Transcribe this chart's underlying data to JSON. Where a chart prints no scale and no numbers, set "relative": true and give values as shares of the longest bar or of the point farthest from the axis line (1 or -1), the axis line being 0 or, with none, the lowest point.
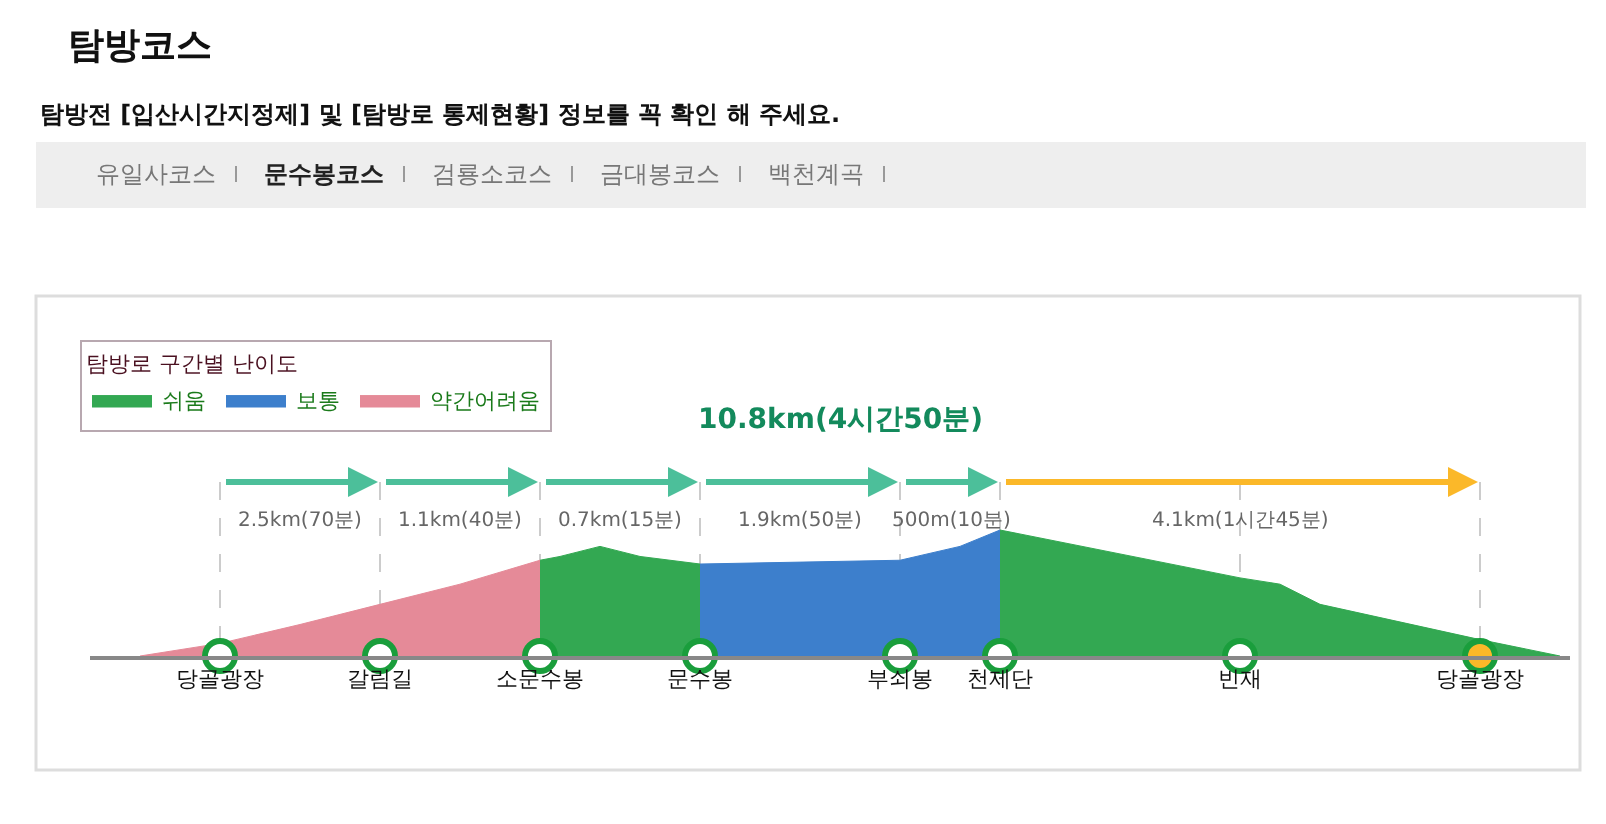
{
  "chart_data": {
    "type": "area",
    "relative": true,
    "title": "탐방코스",
    "subtitle": "탐방전 [입산시간지정제] 및 [탐방로 통제현황] 정보를 꼭 확인 해 주세요.",
    "legend_title": "탐방로 구간별 난이도",
    "legend": "top left",
    "grid": "x",
    "annotations": [
      "유일사코스",
      "문수봉코스",
      "검룡소코스",
      "금대봉코스",
      "백천계곡",
      "10.8km(4시간50분)",
      "2.5km(70분)",
      "1.1km(40분)",
      "0.7km(15분)",
      "1.9km(50분)",
      "500m(10분)",
      "4.1km(1시간45분)"
    ],
    "categories": [
      null,
      null,
      null,
      null,
      null,
      null,
      "당골광장",
      null,
      null,
      null,
      null,
      null,
      null,
      null,
      "갈림길",
      null,
      null,
      null,
      null,
      null,
      null,
      null,
      "소문수봉",
      null,
      null,
      null,
      null,
      null,
      null,
      null,
      "문수봉",
      null,
      null,
      null,
      null,
      null,
      null,
      null,
      null,
      null,
      "부쇠봉",
      null,
      null,
      null,
      null,
      "천제단",
      null,
      null,
      null,
      null,
      null,
      null,
      null,
      null,
      null,
      null,
      null,
      "빈재",
      null,
      null,
      null,
      null,
      null,
      null,
      null,
      null,
      null,
      null,
      null,
      "당골광장",
      null,
      null,
      null,
      null
    ],
    "series": [
      {
        "name": "쉬움",
        "color": "#33a852",
        "values": [
          null,
          null,
          null,
          null,
          null,
          null,
          null,
          null,
          null,
          null,
          null,
          null,
          null,
          null,
          null,
          null,
          null,
          null,
          null,
          null,
          null,
          null,
          0.76,
          0.79,
          null,
          0.87,
          null,
          0.79,
          null,
          null,
          0.73,
          null,
          null,
          null,
          null,
          null,
          null,
          null,
          null,
          null,
          null,
          null,
          null,
          null,
          null,
          null,
          null,
          null,
          null,
          null,
          null,
          null,
          null,
          null,
          null,
          null,
          null,
          null,
          null,
          null,
          null,
          null,
          null,
          null,
          null,
          null,
          null,
          null,
          null,
          null,
          null,
          null,
          null,
          null
        ]
      },
      {
        "name": "보통",
        "color": "#3d7fcc",
        "values": [
          null,
          null,
          null,
          null,
          null,
          null,
          null,
          null,
          null,
          null,
          null,
          null,
          null,
          null,
          null,
          null,
          null,
          null,
          null,
          null,
          null,
          null,
          null,
          null,
          null,
          null,
          null,
          null,
          null,
          null,
          0.73,
          null,
          null,
          null,
          null,
          null,
          null,
          null,
          null,
          null,
          0.76,
          null,
          null,
          0.87,
          null,
          1,
          null,
          null,
          null,
          null,
          null,
          null,
          null,
          null,
          null,
          null,
          null,
          null,
          null,
          null,
          null,
          null,
          null,
          null,
          null,
          null,
          null,
          null,
          null,
          null,
          null,
          null,
          null,
          null
        ]
      },
      {
        "name": "약간어려움",
        "color": "#e58a98",
        "values": [
          null,
          null,
          0,
          null,
          null,
          null,
          0.1,
          null,
          null,
          null,
          0.25,
          null,
          null,
          null,
          0.41,
          null,
          null,
          null,
          0.57,
          null,
          null,
          null,
          0.76,
          null,
          null,
          null,
          null,
          null,
          null,
          null,
          null,
          null,
          null,
          null,
          null,
          null,
          null,
          null,
          null,
          null,
          null,
          null,
          null,
          null,
          null,
          null,
          null,
          null,
          null,
          null,
          null,
          null,
          null,
          null,
          null,
          null,
          null,
          null,
          null,
          null,
          null,
          null,
          null,
          null,
          null,
          null,
          null,
          null,
          null,
          null,
          null,
          null,
          null,
          null
        ]
      },
      {
        "color": "#33a852",
        "values": [
          null,
          null,
          null,
          null,
          null,
          null,
          null,
          null,
          null,
          null,
          null,
          null,
          null,
          null,
          null,
          null,
          null,
          null,
          null,
          null,
          null,
          null,
          null,
          null,
          null,
          null,
          null,
          null,
          null,
          null,
          null,
          null,
          null,
          null,
          null,
          null,
          null,
          null,
          null,
          null,
          null,
          null,
          null,
          null,
          null,
          1,
          null,
          null,
          null,
          null,
          null,
          null,
          null,
          null,
          null,
          null,
          null,
          0.62,
          null,
          0.57,
          null,
          0.41,
          null,
          null,
          null,
          null,
          null,
          null,
          null,
          0.13,
          null,
          null,
          null,
          0
        ]
      },
      {
        "type": "scatter",
        "marker": "circle",
        "color": "#ffffff",
        "values": [
          null,
          null,
          null,
          null,
          null,
          null,
          0,
          null,
          null,
          null,
          null,
          null,
          null,
          null,
          0,
          null,
          null,
          null,
          null,
          null,
          null,
          null,
          0,
          null,
          null,
          null,
          null,
          null,
          null,
          null,
          0,
          null,
          null,
          null,
          null,
          null,
          null,
          null,
          null,
          null,
          0,
          null,
          null,
          null,
          null,
          0,
          null,
          null,
          null,
          null,
          null,
          null,
          null,
          null,
          null,
          null,
          null,
          0,
          null,
          null,
          null,
          null,
          null,
          null,
          null,
          null,
          null,
          null,
          null,
          null,
          null,
          null,
          null,
          null
        ]
      },
      {
        "type": "scatter",
        "marker": "circle",
        "color": "#fbb829",
        "values": [
          null,
          null,
          null,
          null,
          null,
          null,
          null,
          null,
          null,
          null,
          null,
          null,
          null,
          null,
          null,
          null,
          null,
          null,
          null,
          null,
          null,
          null,
          null,
          null,
          null,
          null,
          null,
          null,
          null,
          null,
          null,
          null,
          null,
          null,
          null,
          null,
          null,
          null,
          null,
          null,
          null,
          null,
          null,
          null,
          null,
          null,
          null,
          null,
          null,
          null,
          null,
          null,
          null,
          null,
          null,
          null,
          null,
          null,
          null,
          null,
          null,
          null,
          null,
          null,
          null,
          null,
          null,
          null,
          null,
          0,
          null,
          null,
          null,
          null
        ]
      }
    ]
  }
}
